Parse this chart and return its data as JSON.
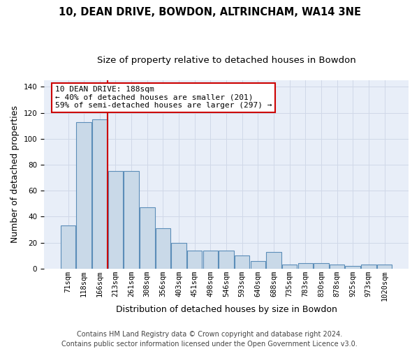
{
  "title_line1": "10, DEAN DRIVE, BOWDON, ALTRINCHAM, WA14 3NE",
  "title_line2": "Size of property relative to detached houses in Bowdon",
  "xlabel": "Distribution of detached houses by size in Bowdon",
  "ylabel": "Number of detached properties",
  "categories": [
    "71sqm",
    "118sqm",
    "166sqm",
    "213sqm",
    "261sqm",
    "308sqm",
    "356sqm",
    "403sqm",
    "451sqm",
    "498sqm",
    "546sqm",
    "593sqm",
    "640sqm",
    "688sqm",
    "735sqm",
    "783sqm",
    "830sqm",
    "878sqm",
    "925sqm",
    "973sqm",
    "1020sqm"
  ],
  "values": [
    33,
    113,
    115,
    75,
    75,
    47,
    31,
    20,
    14,
    14,
    14,
    10,
    6,
    13,
    3,
    4,
    4,
    3,
    2,
    3,
    3
  ],
  "bar_color": "#c9d9e8",
  "bar_edge_color": "#5b8db8",
  "bar_edge_width": 0.8,
  "grid_color": "#d0d8e8",
  "bg_color": "#e8eef8",
  "fig_bg_color": "#ffffff",
  "red_line_x": 2.5,
  "annotation_text": "10 DEAN DRIVE: 188sqm\n← 40% of detached houses are smaller (201)\n59% of semi-detached houses are larger (297) →",
  "annotation_box_color": "#ffffff",
  "annotation_box_edge_color": "#cc0000",
  "property_line_color": "#cc0000",
  "footnote": "Contains HM Land Registry data © Crown copyright and database right 2024.\nContains public sector information licensed under the Open Government Licence v3.0.",
  "ylim": [
    0,
    145
  ],
  "title_fontsize": 10.5,
  "subtitle_fontsize": 9.5,
  "axis_label_fontsize": 9,
  "tick_fontsize": 7.5,
  "annotation_fontsize": 8,
  "footnote_fontsize": 7
}
